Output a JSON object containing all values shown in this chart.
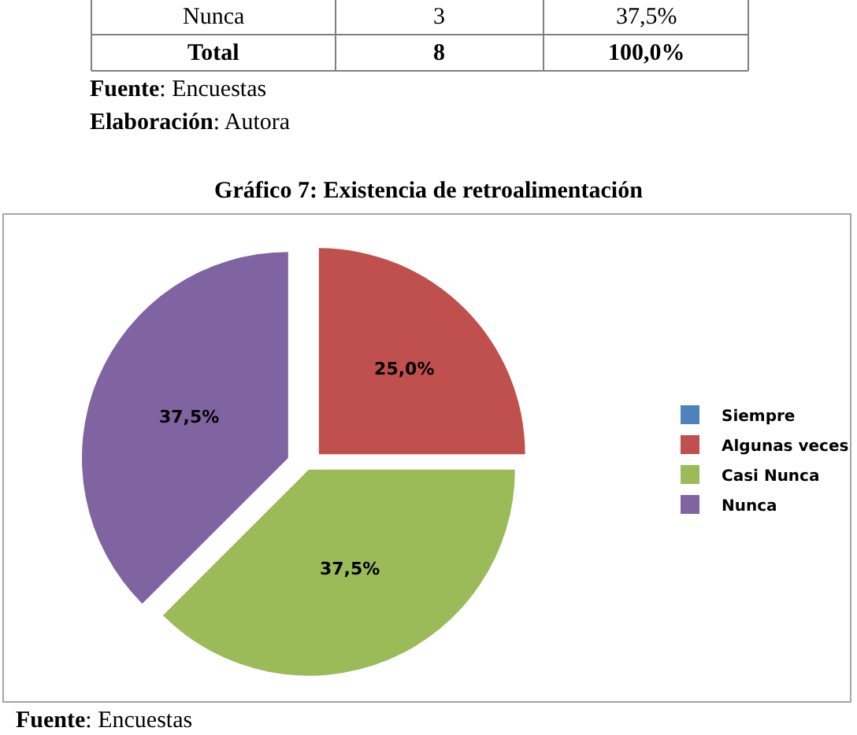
{
  "chart_data": {
    "type": "pie",
    "title": "Gráfico 7: Existencia de retroalimentación",
    "categories": [
      "Siempre",
      "Algunas veces",
      "Casi Nunca",
      "Nunca"
    ],
    "values": [
      0,
      25,
      37.5,
      37.5
    ],
    "colors": [
      "#4f81bd",
      "#c0504d",
      "#9bbb59",
      "#8064a2"
    ],
    "value_labels": [
      null,
      "25,0%",
      "37,5%",
      "37,5%"
    ],
    "legend": "right",
    "annotations": [
      "Nunca",
      "3",
      "37,5%",
      "Total",
      "8",
      "100,0%",
      "Fuente: Encuestas",
      "Elaboración: Autora",
      "Fuente: Encuestas"
    ]
  }
}
